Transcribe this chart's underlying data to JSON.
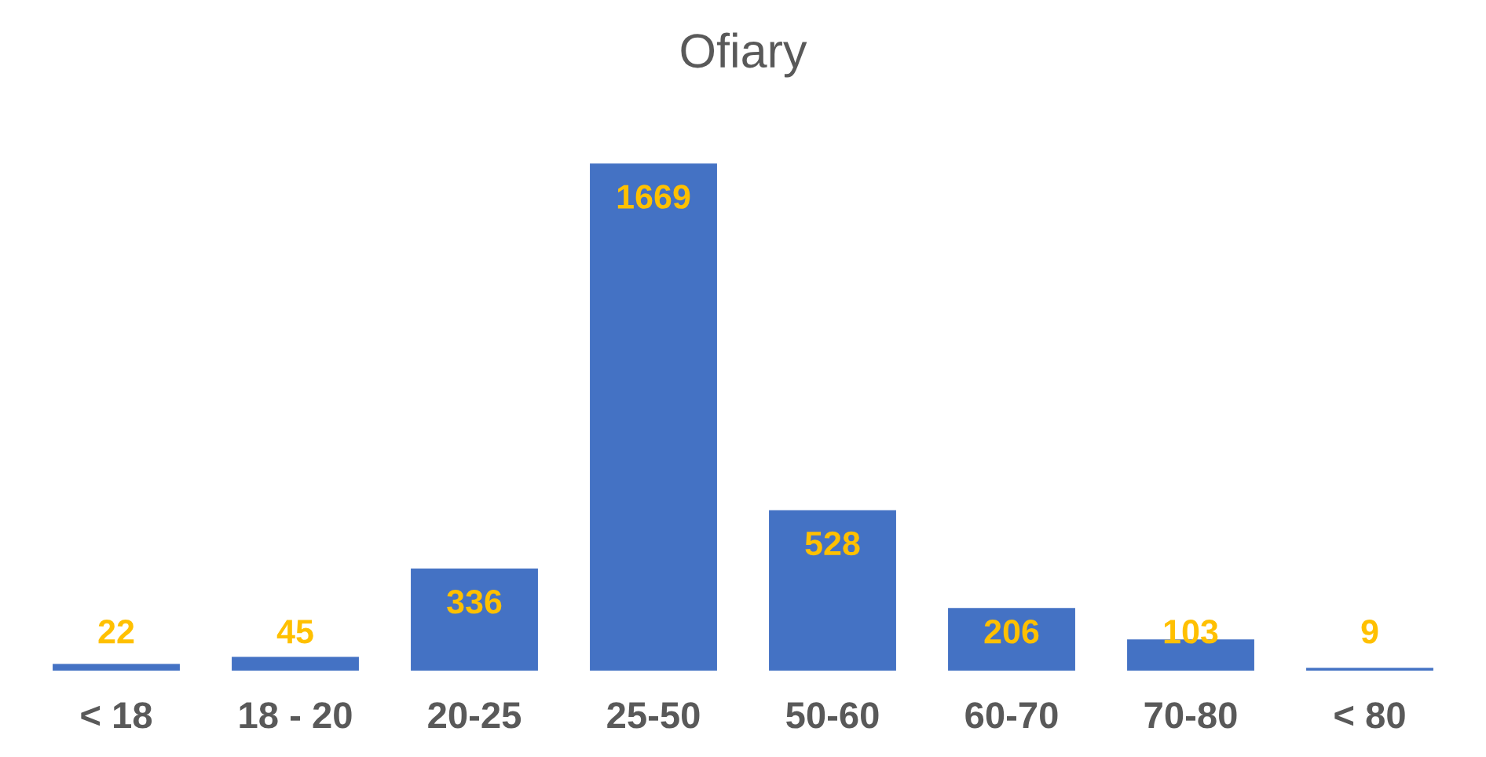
{
  "chart_data": {
    "type": "bar",
    "title": "Ofiary",
    "categories": [
      "< 18",
      "18 - 20",
      "20-25",
      "25-50",
      "50-60",
      "60-70",
      "70-80",
      "< 80"
    ],
    "values": [
      22,
      45,
      336,
      1669,
      528,
      206,
      103,
      9
    ],
    "color": "#4472c4",
    "data_labels": true,
    "tick_labels": "x"
  }
}
